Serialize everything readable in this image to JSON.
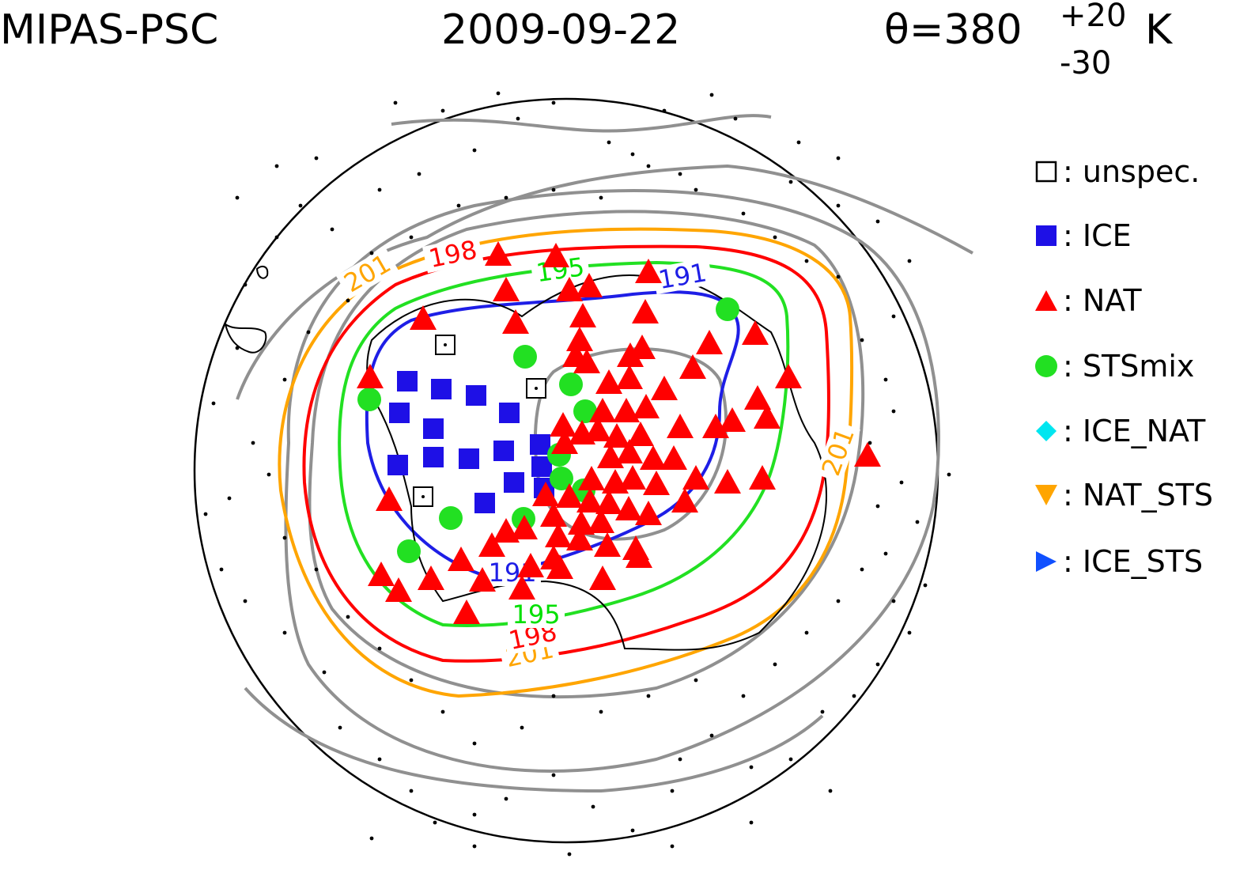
{
  "header": {
    "instrument": "MIPAS-PSC",
    "date": "2009-09-22",
    "theta_prefix": "θ=380",
    "theta_plus": "+20",
    "theta_minus": "-30",
    "theta_unit": "K"
  },
  "contour_labels": [
    {
      "value": "201",
      "color": "#ffa500"
    },
    {
      "value": "198",
      "color": "#ff0000"
    },
    {
      "value": "195",
      "color": "#00e000"
    },
    {
      "value": "191",
      "color": "#1e1ee6"
    },
    {
      "value": "201",
      "color": "#ffa500"
    },
    {
      "value": "198",
      "color": "#ff0000"
    },
    {
      "value": "195",
      "color": "#00e000"
    },
    {
      "value": "191",
      "color": "#1e1ee6"
    },
    {
      "value": "201",
      "color": "#ffa500"
    }
  ],
  "legend": [
    {
      "symbol": "open-square-icon",
      "label": ": unspec.",
      "color": "#000000"
    },
    {
      "symbol": "square-icon",
      "label": ": ICE",
      "color": "#1e10e6"
    },
    {
      "symbol": "triangle-up-icon",
      "label": ": NAT",
      "color": "#ff0000"
    },
    {
      "symbol": "circle-icon",
      "label": ": STSmix",
      "color": "#22e022"
    },
    {
      "symbol": "diamond-icon",
      "label": ": ICE_NAT",
      "color": "#00e6f0"
    },
    {
      "symbol": "triangle-down-icon",
      "label": ": NAT_STS",
      "color": "#ffa500"
    },
    {
      "symbol": "triangle-right-icon",
      "label": ": ICE_STS",
      "color": "#1050ff"
    }
  ]
}
